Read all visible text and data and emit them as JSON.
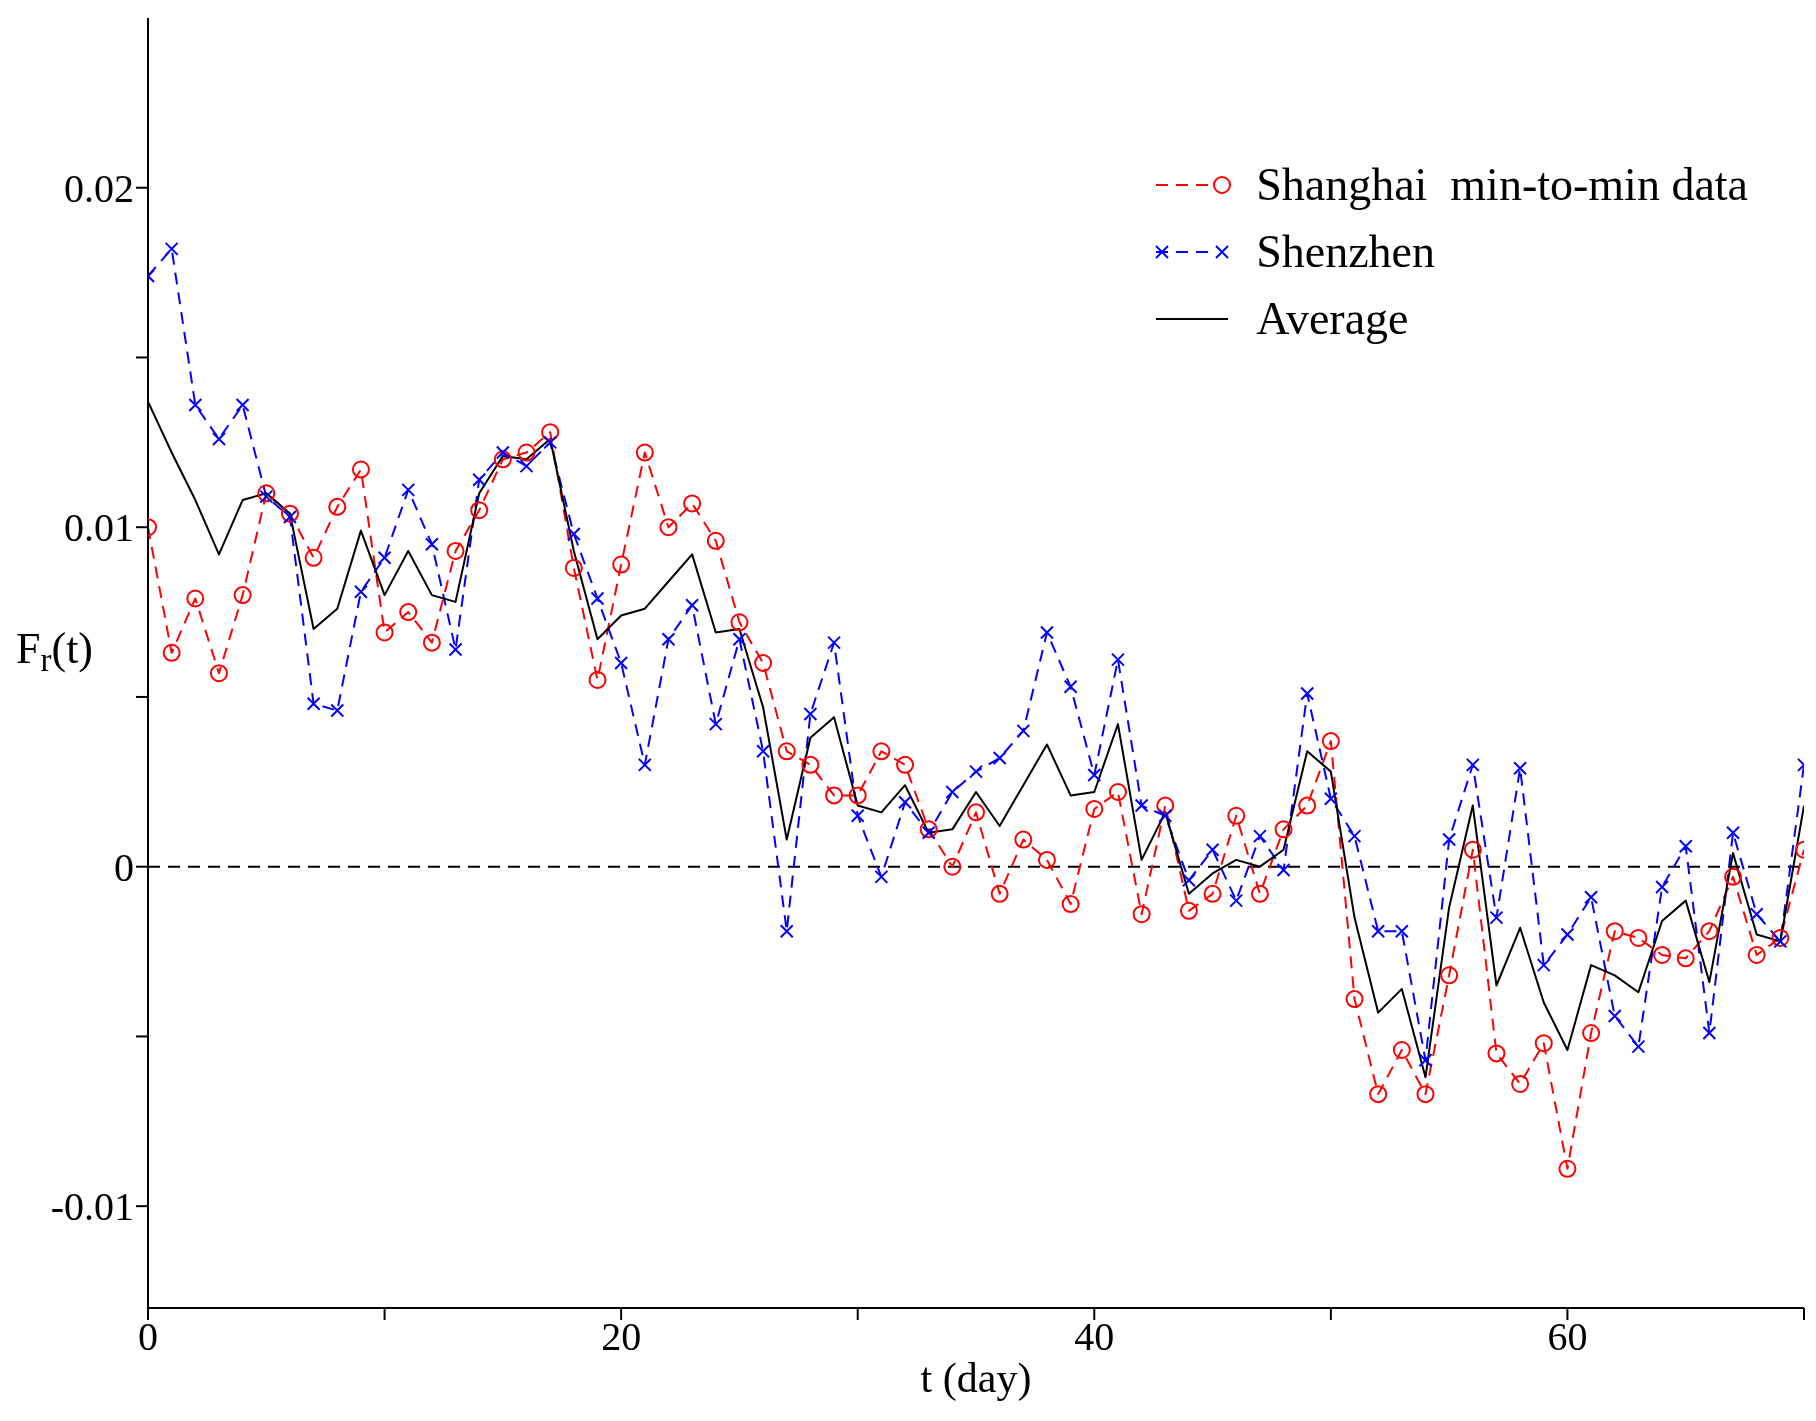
{
  "chart_data": {
    "type": "line",
    "xlabel": "t (day)",
    "ylabel": "F$_{r}$(t)",
    "x": [
      0,
      1,
      2,
      3,
      4,
      5,
      6,
      7,
      8,
      9,
      10,
      11,
      12,
      13,
      14,
      15,
      16,
      17,
      18,
      19,
      20,
      21,
      22,
      23,
      24,
      25,
      26,
      27,
      28,
      29,
      30,
      31,
      32,
      33,
      34,
      35,
      36,
      37,
      38,
      39,
      40,
      41,
      42,
      43,
      44,
      45,
      46,
      47,
      48,
      49,
      50,
      51,
      52,
      53,
      54,
      55,
      56,
      57,
      58,
      59,
      60,
      61,
      62,
      63,
      64,
      65,
      66,
      67,
      68,
      69,
      70
    ],
    "series": [
      {
        "name": "Shanghai  min-to-min data",
        "color": "#ff0000",
        "marker": "circle",
        "line_style": "dashed",
        "values": [
          0.01,
          0.0063,
          0.0079,
          0.0057,
          0.008,
          0.011,
          0.0104,
          0.0091,
          0.0106,
          0.0117,
          0.0069,
          0.0075,
          0.0066,
          0.0093,
          0.0105,
          0.012,
          0.0122,
          0.0128,
          0.0088,
          0.0055,
          0.0089,
          0.0122,
          0.01,
          0.0107,
          0.0096,
          0.0072,
          0.006,
          0.0034,
          0.003,
          0.0021,
          0.0021,
          0.0034,
          0.003,
          0.0011,
          0.0,
          0.0016,
          -0.0008,
          0.0008,
          0.0002,
          -0.0011,
          0.0017,
          0.0022,
          -0.0014,
          0.0018,
          -0.0013,
          -0.0008,
          0.0015,
          -0.0008,
          0.0011,
          0.0018,
          0.0037,
          -0.0039,
          -0.0067,
          -0.0054,
          -0.0067,
          -0.0032,
          0.0005,
          -0.0055,
          -0.0064,
          -0.0052,
          -0.0089,
          -0.0049,
          -0.0019,
          -0.0021,
          -0.0026,
          -0.0027,
          -0.0019,
          -0.0003,
          -0.0026,
          -0.0021,
          0.0005
        ]
      },
      {
        "name": "Shenzhen",
        "color": "#0000ff",
        "marker": "cross",
        "line_style": "dashed",
        "values": [
          0.0174,
          0.0182,
          0.0136,
          0.0126,
          0.0136,
          0.0109,
          0.0103,
          0.0048,
          0.0046,
          0.0081,
          0.0091,
          0.0111,
          0.0095,
          0.0064,
          0.0114,
          0.0122,
          0.0118,
          0.0125,
          0.0098,
          0.0079,
          0.006,
          0.003,
          0.0067,
          0.0077,
          0.0042,
          0.0067,
          0.0034,
          -0.0019,
          0.0045,
          0.0066,
          0.0015,
          -0.0003,
          0.0019,
          0.001,
          0.0022,
          0.0028,
          0.0032,
          0.004,
          0.0069,
          0.0053,
          0.0027,
          0.0061,
          0.0018,
          0.0015,
          -0.0004,
          0.0005,
          -0.001,
          0.0009,
          -0.0001,
          0.0051,
          0.002,
          0.0009,
          -0.0019,
          -0.0019,
          -0.0057,
          0.0008,
          0.003,
          -0.0015,
          0.0029,
          -0.0029,
          -0.002,
          -0.0009,
          -0.0044,
          -0.0053,
          -0.0006,
          0.0006,
          -0.0049,
          0.001,
          -0.0014,
          -0.0022,
          0.003
        ]
      },
      {
        "name": "Average",
        "color": "#000000",
        "marker": "none",
        "line_style": "solid",
        "values": [
          0.0137,
          0.0122,
          0.0108,
          0.0092,
          0.0108,
          0.011,
          0.0104,
          0.007,
          0.0076,
          0.0099,
          0.008,
          0.0093,
          0.008,
          0.0078,
          0.011,
          0.0121,
          0.012,
          0.0126,
          0.0093,
          0.0067,
          0.0074,
          0.0076,
          0.0084,
          0.0092,
          0.0069,
          0.007,
          0.0047,
          0.0008,
          0.0038,
          0.0044,
          0.0018,
          0.0016,
          0.0024,
          0.001,
          0.0011,
          0.0022,
          0.0012,
          0.0024,
          0.0036,
          0.0021,
          0.0022,
          0.0042,
          0.0002,
          0.0016,
          -0.0008,
          -0.0002,
          0.0002,
          0.0,
          0.0005,
          0.0034,
          0.0028,
          -0.0015,
          -0.0043,
          -0.0036,
          -0.0062,
          -0.0012,
          0.0018,
          -0.0035,
          -0.0018,
          -0.004,
          -0.0054,
          -0.0029,
          -0.0032,
          -0.0037,
          -0.0016,
          -0.001,
          -0.0034,
          0.0004,
          -0.002,
          -0.0022,
          0.0018
        ]
      }
    ],
    "xlim": [
      0,
      70
    ],
    "xticks": [
      0,
      {
        "value": 10,
        "label": null
      },
      20,
      {
        "value": 30,
        "label": null
      },
      40,
      {
        "value": 50,
        "label": null
      },
      60,
      {
        "value": 70,
        "label": null
      }
    ],
    "ylim": [
      -0.013,
      0.025
    ],
    "yticks": [
      -0.01,
      {
        "value": -0.005,
        "label": null
      },
      0,
      {
        "value": 0.005,
        "label": null
      },
      0.01,
      {
        "value": 0.015,
        "label": null
      },
      0.02
    ],
    "ref_lines": [
      {
        "axis": "y",
        "value": 0,
        "color": "#000000",
        "line_style": "dashed"
      }
    ],
    "grid": false,
    "legend": "top right"
  }
}
